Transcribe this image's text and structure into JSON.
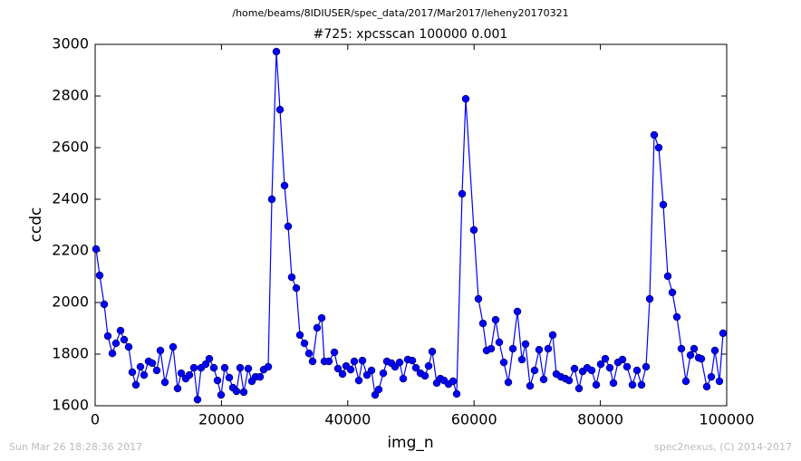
{
  "chart_data": {
    "type": "line",
    "suptitle": "/home/beams/8IDIUSER/spec_data/2017/Mar2017/leheny20170321",
    "title": "#725: xpcsscan 100000 0.001",
    "xlabel": "img_n",
    "ylabel": "ccdc",
    "footer_left": "Sun Mar 26 18:28:36 2017",
    "footer_right": "spec2nexus, (C) 2014-2017",
    "xlim": [
      0,
      100000
    ],
    "xticks": [
      0,
      20000,
      40000,
      60000,
      80000,
      100000
    ],
    "ylim": [
      1600,
      3000
    ],
    "yticks": [
      1600,
      1800,
      2000,
      2200,
      2400,
      2600,
      2800,
      3000
    ],
    "color": "#0000ff",
    "x": [
      143,
      717,
      1435,
      2009,
      2726,
      3300,
      4017,
      4591,
      5308,
      5882,
      6456,
      7174,
      7747,
      8465,
      9039,
      9756,
      10330,
      11047,
      12338,
      13056,
      13630,
      14347,
      14921,
      15638,
      16212,
      16786,
      17504,
      18077,
      18795,
      19369,
      19943,
      20517,
      21234,
      21808,
      22382,
      22956,
      23529,
      24247,
      24821,
      25395,
      26112,
      26686,
      27403,
      27977,
      28694,
      29268,
      29986,
      30560,
      31133,
      31851,
      32425,
      33142,
      33859,
      34433,
      35151,
      35868,
      36298,
      37016,
      37877,
      38451,
      39168,
      39742,
      40459,
      41033,
      41750,
      42324,
      43042,
      43759,
      44333,
      44907,
      45624,
      46198,
      46915,
      47489,
      48207,
      48780,
      49498,
      50215,
      50789,
      51506,
      52224,
      52798,
      53372,
      54089,
      54663,
      55237,
      55954,
      56671,
      57245,
      58106,
      58680,
      59971,
      60689,
      61406,
      61980,
      62697,
      63414,
      63988,
      64706,
      65423,
      66141,
      66858,
      67575,
      68149,
      68867,
      69584,
      70301,
      71019,
      71736,
      72453,
      73027,
      73745,
      74462,
      75036,
      75897,
      76614,
      77188,
      77905,
      78623,
      79340,
      80057,
      80775,
      81492,
      82066,
      82783,
      83501,
      84218,
      85079,
      85796,
      86513,
      87231,
      87805,
      88522,
      89239,
      89957,
      90674,
      91392,
      92109,
      92826,
      93544,
      94261,
      94835,
      95552,
      95983,
      96843,
      97561,
      98135,
      98852,
      99426
    ],
    "values": [
      2207,
      2105,
      1993,
      1870,
      1803,
      1842,
      1891,
      1856,
      1828,
      1730,
      1681,
      1751,
      1719,
      1772,
      1765,
      1737,
      1814,
      1691,
      1828,
      1667,
      1726,
      1705,
      1719,
      1747,
      1624,
      1747,
      1761,
      1782,
      1747,
      1698,
      1642,
      1747,
      1709,
      1670,
      1656,
      1747,
      1653,
      1744,
      1695,
      1712,
      1712,
      1740,
      1751,
      2400,
      2972,
      2747,
      2453,
      2295,
      2098,
      2056,
      1874,
      1842,
      1803,
      1772,
      1902,
      1940,
      1772,
      1772,
      1807,
      1744,
      1723,
      1754,
      1740,
      1772,
      1698,
      1775,
      1719,
      1737,
      1642,
      1663,
      1726,
      1772,
      1765,
      1751,
      1768,
      1705,
      1779,
      1775,
      1747,
      1726,
      1716,
      1754,
      1810,
      1688,
      1705,
      1698,
      1684,
      1695,
      1646,
      2421,
      2789,
      2281,
      2014,
      1919,
      1814,
      1821,
      1933,
      1846,
      1768,
      1691,
      1821,
      1965,
      1779,
      1839,
      1677,
      1737,
      1817,
      1702,
      1821,
      1874,
      1723,
      1712,
      1705,
      1698,
      1744,
      1667,
      1733,
      1747,
      1737,
      1681,
      1761,
      1782,
      1747,
      1688,
      1768,
      1779,
      1751,
      1681,
      1737,
      1681,
      1751,
      2014,
      2649,
      2600,
      2379,
      2102,
      2039,
      1944,
      1821,
      1695,
      1796,
      1821,
      1786,
      1782,
      1674,
      1712,
      1814,
      1695,
      1881
    ]
  }
}
